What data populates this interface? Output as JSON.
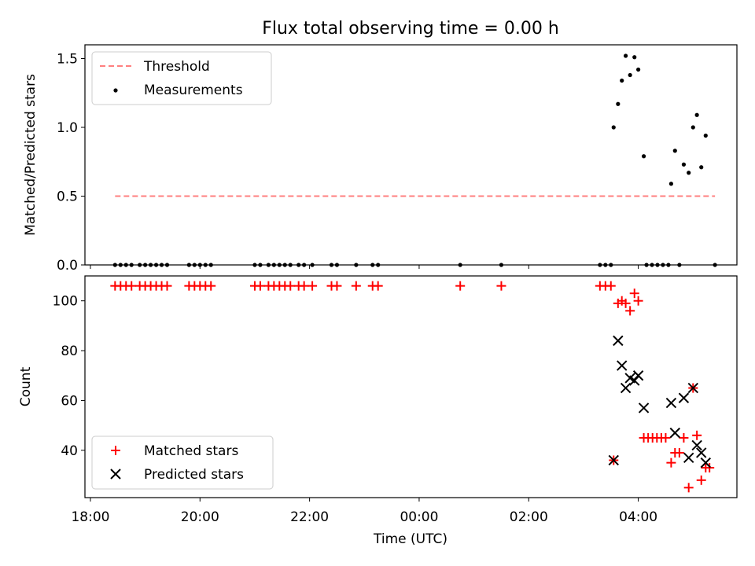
{
  "chart_data": [
    {
      "type": "scatter",
      "title": "Flux total observing time = 0.00 h",
      "ylabel": "Matched/Predicted stars",
      "xlim": [
        -0.1,
        11.8
      ],
      "ylim": [
        0,
        1.6
      ],
      "yticks": [
        0.0,
        0.5,
        1.0,
        1.5
      ],
      "ytick_labels": [
        "0.0",
        "0.5",
        "1.0",
        "1.5"
      ],
      "legend_position": "upper-left",
      "threshold": {
        "name": "Threshold",
        "value": 0.5,
        "x": [
          0.45,
          11.4
        ],
        "color": "#ff7f7f"
      },
      "series": [
        {
          "name": "Measurements",
          "color": "#000000",
          "points": [
            [
              0.45,
              0
            ],
            [
              0.55,
              0
            ],
            [
              0.65,
              0
            ],
            [
              0.75,
              0
            ],
            [
              0.9,
              0
            ],
            [
              1.0,
              0
            ],
            [
              1.1,
              0
            ],
            [
              1.2,
              0
            ],
            [
              1.3,
              0
            ],
            [
              1.4,
              0
            ],
            [
              1.8,
              0
            ],
            [
              1.9,
              0
            ],
            [
              2.0,
              0
            ],
            [
              2.1,
              0
            ],
            [
              2.2,
              0
            ],
            [
              3.0,
              0
            ],
            [
              3.1,
              0
            ],
            [
              3.25,
              0
            ],
            [
              3.35,
              0
            ],
            [
              3.45,
              0
            ],
            [
              3.55,
              0
            ],
            [
              3.65,
              0
            ],
            [
              3.8,
              0
            ],
            [
              3.9,
              0
            ],
            [
              4.05,
              0
            ],
            [
              4.4,
              0
            ],
            [
              4.5,
              0
            ],
            [
              4.85,
              0
            ],
            [
              5.15,
              0
            ],
            [
              5.25,
              0
            ],
            [
              6.75,
              0
            ],
            [
              7.5,
              0
            ],
            [
              9.3,
              0
            ],
            [
              9.4,
              0
            ],
            [
              9.5,
              0
            ],
            [
              10.15,
              0
            ],
            [
              10.25,
              0
            ],
            [
              10.35,
              0
            ],
            [
              10.45,
              0
            ],
            [
              10.55,
              0
            ],
            [
              10.75,
              0
            ],
            [
              11.4,
              0
            ],
            [
              9.55,
              1.0
            ],
            [
              9.63,
              1.17
            ],
            [
              9.7,
              1.34
            ],
            [
              9.77,
              1.52
            ],
            [
              9.85,
              1.38
            ],
            [
              9.93,
              1.51
            ],
            [
              10.0,
              1.42
            ],
            [
              10.1,
              0.79
            ],
            [
              10.6,
              0.59
            ],
            [
              10.67,
              0.83
            ],
            [
              10.83,
              0.73
            ],
            [
              10.92,
              0.67
            ],
            [
              11.0,
              1.0
            ],
            [
              11.07,
              1.09
            ],
            [
              11.15,
              0.71
            ],
            [
              11.23,
              0.94
            ]
          ]
        }
      ]
    },
    {
      "type": "scatter",
      "xlabel": "Time (UTC)",
      "ylabel": "Count",
      "xlim": [
        -0.1,
        11.8
      ],
      "ylim": [
        21,
        110
      ],
      "yticks": [
        40,
        60,
        80,
        100
      ],
      "ytick_labels": [
        "40",
        "60",
        "80",
        "100"
      ],
      "xticks": [
        0,
        2,
        4,
        6,
        8,
        10
      ],
      "xtick_labels": [
        "18:00",
        "20:00",
        "22:00",
        "00:00",
        "02:00",
        "04:00"
      ],
      "legend_position": "lower-left",
      "series": [
        {
          "name": "Matched stars",
          "marker": "plus",
          "color": "#ff0000",
          "points": [
            [
              0.45,
              106
            ],
            [
              0.55,
              106
            ],
            [
              0.65,
              106
            ],
            [
              0.75,
              106
            ],
            [
              0.9,
              106
            ],
            [
              1.0,
              106
            ],
            [
              1.1,
              106
            ],
            [
              1.2,
              106
            ],
            [
              1.3,
              106
            ],
            [
              1.4,
              106
            ],
            [
              1.8,
              106
            ],
            [
              1.9,
              106
            ],
            [
              2.0,
              106
            ],
            [
              2.1,
              106
            ],
            [
              2.2,
              106
            ],
            [
              3.0,
              106
            ],
            [
              3.1,
              106
            ],
            [
              3.25,
              106
            ],
            [
              3.35,
              106
            ],
            [
              3.45,
              106
            ],
            [
              3.55,
              106
            ],
            [
              3.65,
              106
            ],
            [
              3.8,
              106
            ],
            [
              3.9,
              106
            ],
            [
              4.05,
              106
            ],
            [
              4.4,
              106
            ],
            [
              4.5,
              106
            ],
            [
              4.85,
              106
            ],
            [
              5.15,
              106
            ],
            [
              5.25,
              106
            ],
            [
              6.75,
              106
            ],
            [
              7.5,
              106
            ],
            [
              9.3,
              106
            ],
            [
              9.4,
              106
            ],
            [
              9.5,
              106
            ],
            [
              9.55,
              36
            ],
            [
              9.63,
              99
            ],
            [
              9.7,
              100
            ],
            [
              9.77,
              99
            ],
            [
              9.85,
              96
            ],
            [
              9.93,
              103
            ],
            [
              10.0,
              100
            ],
            [
              10.1,
              45
            ],
            [
              10.18,
              45
            ],
            [
              10.26,
              45
            ],
            [
              10.34,
              45
            ],
            [
              10.42,
              45
            ],
            [
              10.5,
              45
            ],
            [
              10.6,
              35
            ],
            [
              10.67,
              39
            ],
            [
              10.75,
              39
            ],
            [
              10.83,
              45
            ],
            [
              10.92,
              25
            ],
            [
              11.0,
              65
            ],
            [
              11.07,
              46
            ],
            [
              11.15,
              28
            ],
            [
              11.23,
              33
            ],
            [
              11.3,
              33
            ]
          ]
        },
        {
          "name": "Predicted stars",
          "marker": "x",
          "color": "#000000",
          "points": [
            [
              9.55,
              36
            ],
            [
              9.63,
              84
            ],
            [
              9.7,
              74
            ],
            [
              9.77,
              65
            ],
            [
              9.85,
              69
            ],
            [
              9.93,
              68
            ],
            [
              10.0,
              70
            ],
            [
              10.1,
              57
            ],
            [
              10.6,
              59
            ],
            [
              10.67,
              47
            ],
            [
              10.83,
              61
            ],
            [
              10.92,
              37
            ],
            [
              11.0,
              65
            ],
            [
              11.07,
              42
            ],
            [
              11.15,
              39
            ],
            [
              11.23,
              35
            ]
          ]
        }
      ]
    }
  ]
}
